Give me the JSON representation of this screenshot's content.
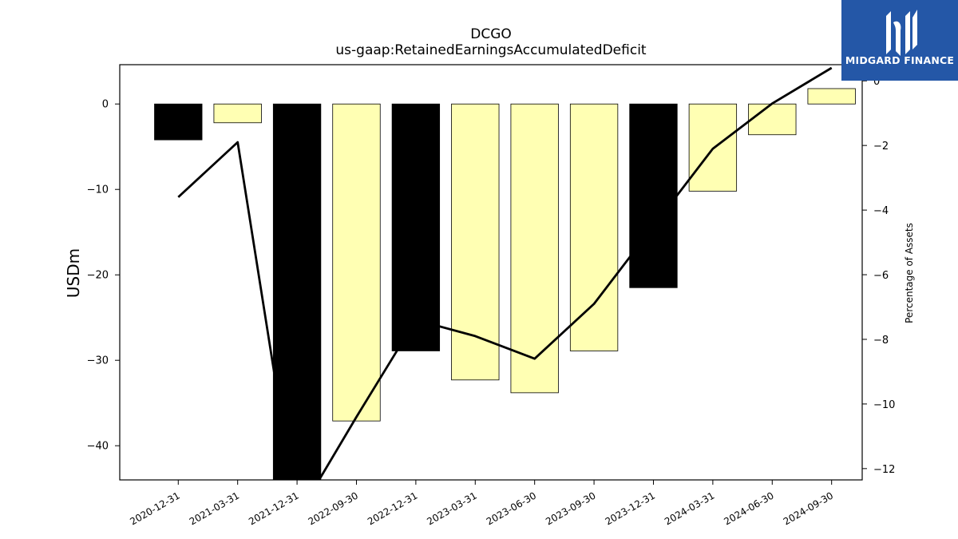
{
  "chart_data": {
    "type": "bar",
    "title": "DCGO",
    "subtitle": "us-gaap:RetainedEarningsAccumulatedDeficit",
    "ylabel": "USDm",
    "ylabel_right": "Percentage of Assets",
    "ylim": [
      -44,
      4.6
    ],
    "ylim_right": [
      -12.35,
      0.5
    ],
    "yticks": [
      0,
      -10,
      -20,
      -30,
      -40
    ],
    "yticks_right": [
      0,
      -2,
      -4,
      -6,
      -8,
      -10,
      -12
    ],
    "categories": [
      "2020-12-31",
      "2021-03-31",
      "2021-12-31",
      "2022-09-30",
      "2022-12-31",
      "2023-03-31",
      "2023-06-30",
      "2023-09-30",
      "2023-12-31",
      "2024-03-31",
      "2024-06-30",
      "2024-09-30"
    ],
    "series": [
      {
        "axis": "left",
        "kind": "bar",
        "values": [
          -4.2,
          -2.2,
          -47,
          -37.1,
          -28.9,
          -32.3,
          -33.8,
          -28.9,
          -21.5,
          -10.2,
          -3.6,
          1.8
        ],
        "colors": [
          "#000000",
          "#ffffb3",
          "#000000",
          "#ffffb3",
          "#000000",
          "#ffffb3",
          "#ffffb3",
          "#ffffb3",
          "#000000",
          "#ffffb3",
          "#ffffb3",
          "#ffffb3"
        ]
      },
      {
        "axis": "right",
        "kind": "line",
        "color": "#000000",
        "values": [
          -3.6,
          -1.9,
          -13.5,
          -10.4,
          -7.4,
          -7.9,
          -8.6,
          -6.9,
          -4.5,
          -2.1,
          -0.7,
          0.4
        ]
      }
    ],
    "grid": false
  },
  "logo": {
    "text": "MIDGARD FINANCE",
    "background": "#2457a7"
  }
}
